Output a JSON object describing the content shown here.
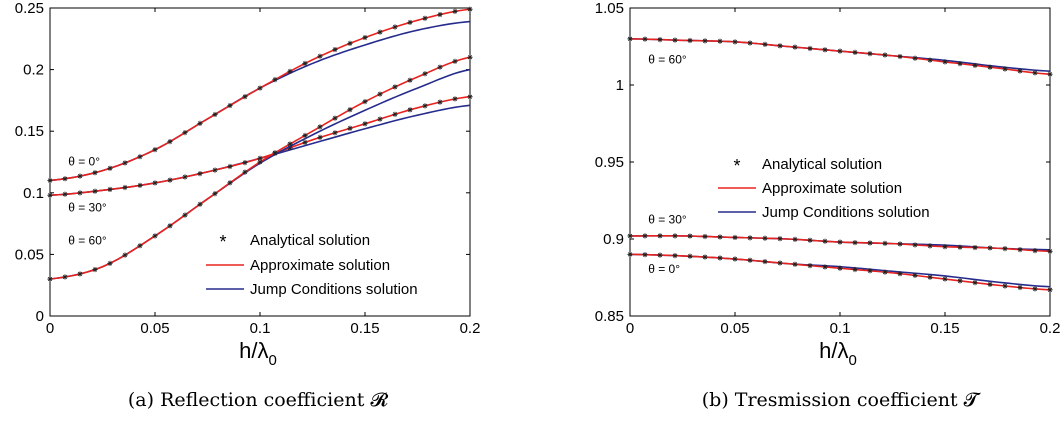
{
  "chart_data": [
    {
      "type": "line",
      "xlabel": "h/λ",
      "xlabel_sub": "0",
      "xlim": [
        0,
        0.2
      ],
      "ylim": [
        0,
        0.25
      ],
      "xticks": [
        "0",
        "0.05",
        "0.1",
        "0.15",
        "0.2"
      ],
      "xtick_values": [
        0,
        0.05,
        0.1,
        0.15,
        0.2
      ],
      "yticks": [
        "0",
        "0.05",
        "0.1",
        "0.15",
        "0.2",
        "0.25"
      ],
      "ytick_values": [
        0,
        0.05,
        0.1,
        0.15,
        0.2,
        0.25
      ],
      "grid": false,
      "legend_position": "bottom-right",
      "legend": [
        "Analytical solution",
        "Approximate solution",
        "Jump Conditions solution"
      ],
      "caption": "(a)  Reflection coefficient 𝓡",
      "x": [
        0,
        0.025,
        0.05,
        0.075,
        0.1,
        0.125,
        0.15,
        0.175,
        0.2
      ],
      "series": [
        {
          "annotation": "θ = 0°",
          "annotation_x": 0.002,
          "annotation_y": 0.122,
          "analytical": [
            0.11,
            0.118,
            0.135,
            0.16,
            0.185,
            0.208,
            0.226,
            0.24,
            0.249
          ],
          "approximate": [
            0.11,
            0.118,
            0.135,
            0.16,
            0.185,
            0.208,
            0.226,
            0.24,
            0.249
          ],
          "jump": [
            0.11,
            0.118,
            0.135,
            0.16,
            0.185,
            0.205,
            0.22,
            0.232,
            0.239
          ]
        },
        {
          "annotation": "θ = 30°",
          "annotation_x": 0.002,
          "annotation_y": 0.085,
          "analytical": [
            0.098,
            0.102,
            0.108,
            0.117,
            0.128,
            0.143,
            0.156,
            0.169,
            0.178
          ],
          "approximate": [
            0.098,
            0.102,
            0.108,
            0.117,
            0.128,
            0.143,
            0.156,
            0.169,
            0.178
          ],
          "jump": [
            0.098,
            0.102,
            0.108,
            0.117,
            0.128,
            0.14,
            0.152,
            0.163,
            0.171
          ]
        },
        {
          "annotation": "θ = 60°",
          "annotation_x": 0.002,
          "annotation_y": 0.058,
          "analytical": [
            0.03,
            0.04,
            0.065,
            0.095,
            0.125,
            0.15,
            0.174,
            0.194,
            0.21
          ],
          "approximate": [
            0.03,
            0.04,
            0.065,
            0.095,
            0.125,
            0.15,
            0.174,
            0.194,
            0.21
          ],
          "jump": [
            0.03,
            0.04,
            0.065,
            0.095,
            0.124,
            0.147,
            0.167,
            0.185,
            0.2
          ]
        }
      ]
    },
    {
      "type": "line",
      "xlabel": "h/λ",
      "xlabel_sub": "0",
      "xlim": [
        0,
        0.2
      ],
      "ylim": [
        0.85,
        1.05
      ],
      "xticks": [
        "0",
        "0.05",
        "0.1",
        "0.15",
        "0.2"
      ],
      "xtick_values": [
        0,
        0.05,
        0.1,
        0.15,
        0.2
      ],
      "yticks": [
        "0.85",
        "0.9",
        "0.95",
        "1",
        "1.05"
      ],
      "ytick_values": [
        0.85,
        0.9,
        0.95,
        1,
        1.05
      ],
      "grid": false,
      "legend_position": "center",
      "legend": [
        "Analytical solution",
        "Approximate solution",
        "Jump Conditions solution"
      ],
      "caption": "(b)  Tresmission coefficient 𝓣",
      "x": [
        0,
        0.025,
        0.05,
        0.075,
        0.1,
        0.125,
        0.15,
        0.175,
        0.2
      ],
      "series": [
        {
          "annotation": "θ = 60°",
          "annotation_x": 0.002,
          "annotation_y": 1.014,
          "analytical": [
            1.03,
            1.029,
            1.028,
            1.025,
            1.022,
            1.019,
            1.015,
            1.011,
            1.007
          ],
          "approximate": [
            1.03,
            1.029,
            1.028,
            1.025,
            1.022,
            1.019,
            1.015,
            1.011,
            1.007
          ],
          "jump": [
            1.03,
            1.029,
            1.028,
            1.025,
            1.022,
            1.019,
            1.016,
            1.012,
            1.009
          ]
        },
        {
          "annotation": "θ = 30°",
          "annotation_x": 0.002,
          "annotation_y": 0.91,
          "analytical": [
            0.902,
            0.902,
            0.901,
            0.9,
            0.898,
            0.897,
            0.895,
            0.894,
            0.892
          ],
          "approximate": [
            0.902,
            0.902,
            0.901,
            0.9,
            0.898,
            0.897,
            0.895,
            0.894,
            0.892
          ],
          "jump": [
            0.902,
            0.902,
            0.901,
            0.9,
            0.898,
            0.897,
            0.896,
            0.894,
            0.893
          ]
        },
        {
          "annotation": "θ = 0°",
          "annotation_x": 0.002,
          "annotation_y": 0.878,
          "analytical": [
            0.89,
            0.889,
            0.887,
            0.884,
            0.881,
            0.878,
            0.874,
            0.87,
            0.867
          ],
          "approximate": [
            0.89,
            0.889,
            0.887,
            0.884,
            0.881,
            0.878,
            0.874,
            0.87,
            0.867
          ],
          "jump": [
            0.89,
            0.889,
            0.887,
            0.884,
            0.882,
            0.879,
            0.876,
            0.872,
            0.869
          ]
        }
      ]
    }
  ],
  "colors": {
    "approximate": "#e8231f",
    "jump": "#262c8c",
    "analytical": "#222222",
    "axis": "#000000"
  }
}
